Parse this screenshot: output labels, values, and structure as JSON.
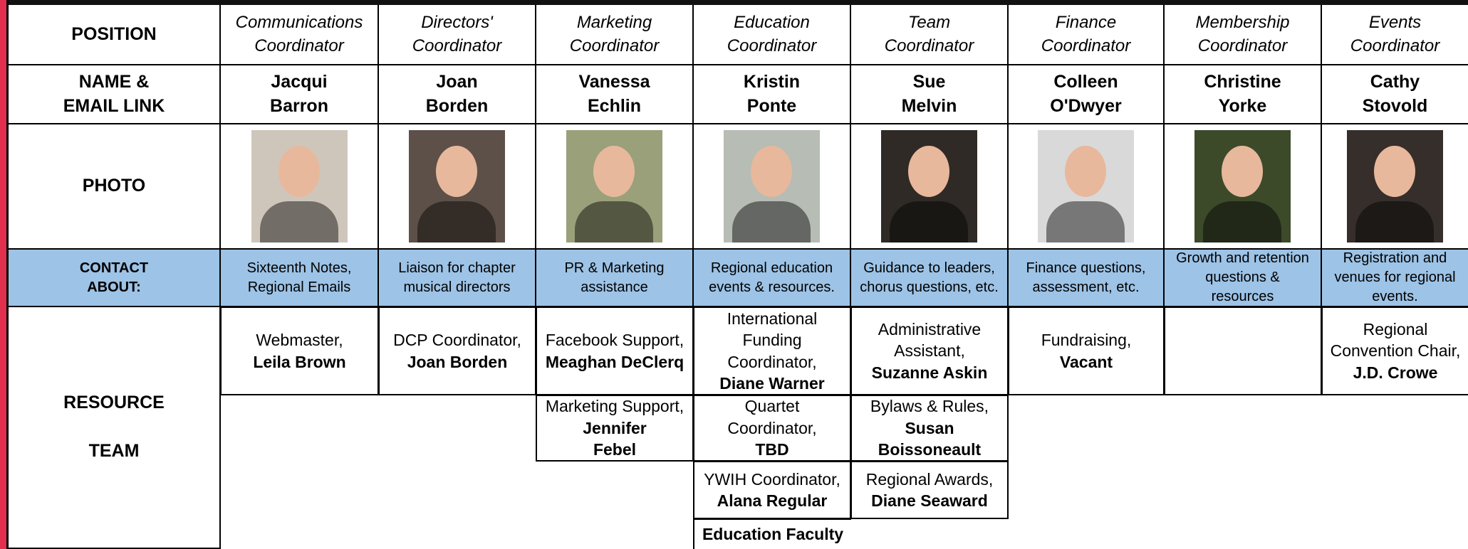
{
  "row_headers": {
    "position": "POSITION",
    "name": "NAME &\nEMAIL LINK",
    "photo": "PHOTO",
    "contact": "CONTACT\nABOUT:",
    "resource": "RESOURCE\n\nTEAM"
  },
  "columns": [
    {
      "position": "Communications\nCoordinator",
      "name": "Jacqui\nBarron",
      "contact": "Sixteenth Notes,\nRegional Emails",
      "resources": [
        {
          "role": "Webmaster,",
          "name": "Leila Brown"
        }
      ]
    },
    {
      "position": "Directors'\nCoordinator",
      "name": "Joan\nBorden",
      "contact": "Liaison for chapter\nmusical directors",
      "resources": [
        {
          "role": "DCP Coordinator,",
          "name": "Joan Borden"
        }
      ]
    },
    {
      "position": "Marketing\nCoordinator",
      "name": "Vanessa\nEchlin",
      "contact": "PR & Marketing\nassistance",
      "resources": [
        {
          "role": "Facebook Support,",
          "name": "Meaghan DeClerq"
        },
        {
          "role": "Marketing Support,",
          "name": "Jennifer\nFebel"
        }
      ]
    },
    {
      "position": "Education\nCoordinator",
      "name": "Kristin\nPonte",
      "contact": "Regional education\nevents & resources.",
      "resources": [
        {
          "role": "International\nFunding\nCoordinator,",
          "name": "Diane Warner"
        },
        {
          "role": "Quartet\nCoordinator,",
          "name": "TBD"
        },
        {
          "role": "YWIH Coordinator,",
          "name": "Alana Regular"
        },
        {
          "name": "Education Faculty"
        }
      ]
    },
    {
      "position": "Team\nCoordinator",
      "name": "Sue\nMelvin",
      "contact": "Guidance to leaders,\nchorus questions, etc.",
      "resources": [
        {
          "role": "Administrative\nAssistant,",
          "name": "Suzanne Askin"
        },
        {
          "role": "Bylaws & Rules,",
          "name": "Susan\nBoissoneault"
        },
        {
          "role": "Regional Awards,",
          "name": "Diane Seaward"
        }
      ]
    },
    {
      "position": "Finance\nCoordinator",
      "name": "Colleen\nO'Dwyer",
      "contact": "Finance questions,\nassessment, etc.",
      "resources": [
        {
          "role": "Fundraising,",
          "name": "Vacant"
        }
      ]
    },
    {
      "position": "Membership\nCoordinator",
      "name": "Christine\nYorke",
      "contact": "Growth and retention\nquestions &\nresources",
      "resources": []
    },
    {
      "position": "Events\nCoordinator",
      "name": "Cathy\nStovold",
      "contact": "Registration and\nvenues for regional\nevents.",
      "resources": [
        {
          "role": "Regional\nConvention Chair,",
          "name": "J.D. Crowe"
        }
      ]
    }
  ]
}
